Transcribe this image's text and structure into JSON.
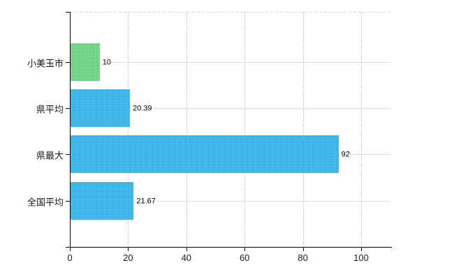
{
  "chart_data": {
    "type": "bar",
    "orientation": "horizontal",
    "title": "",
    "xlabel": "",
    "ylabel": "",
    "categories": [
      "小美玉市",
      "県平均",
      "県最大",
      "全国平均"
    ],
    "values": [
      10,
      20.39,
      92,
      21.67
    ],
    "value_labels": [
      "10",
      "20.39",
      "92",
      "21.67"
    ],
    "bar_colors": [
      "green",
      "blue",
      "blue",
      "blue"
    ],
    "x_ticks": [
      0,
      20,
      40,
      60,
      80,
      100
    ],
    "x_tick_labels": [
      "0",
      "20",
      "40",
      "60",
      "80",
      "100"
    ],
    "xlim": [
      0,
      110
    ],
    "grid": true,
    "legend": null
  },
  "colors": {
    "bar_blue": "#45b8eb",
    "bar_green": "#76d58c",
    "axis": "#000000",
    "v_gridline": "#d2d6d2",
    "h_gridline": "#d9dfd9",
    "text": "#1a1a1a",
    "background": "#ffffff"
  }
}
